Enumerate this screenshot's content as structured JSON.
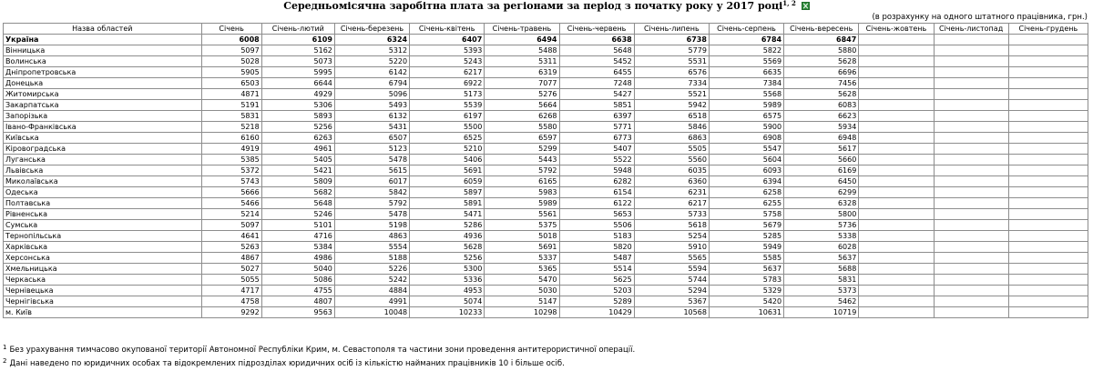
{
  "title": "Середньомісячна заробітна плата за регіонами за період з початку року у 2017 році",
  "title_sup": "1, 2",
  "units_note": "(в розрахунку на одного штатного працівника, грн.)",
  "table": {
    "headers": [
      "Назва областей",
      "Січень",
      "Січень-лютий",
      "Січень-березень",
      "Січень-квітень",
      "Січень-травень",
      "Січень-червень",
      "Січень-липень",
      "Січень-серпень",
      "Січень-вересень",
      "Січень-жовтень",
      "Січень-листопад",
      "Січень-грудень"
    ],
    "rows": [
      [
        "Україна",
        "6008",
        "6109",
        "6324",
        "6407",
        "6494",
        "6638",
        "6738",
        "6784",
        "6847",
        "",
        "",
        ""
      ],
      [
        "Вінницька",
        "5097",
        "5162",
        "5312",
        "5393",
        "5488",
        "5648",
        "5779",
        "5822",
        "5880",
        "",
        "",
        ""
      ],
      [
        "Волинська",
        "5028",
        "5073",
        "5220",
        "5243",
        "5311",
        "5452",
        "5531",
        "5569",
        "5628",
        "",
        "",
        ""
      ],
      [
        "Дніпропетровська",
        "5905",
        "5995",
        "6142",
        "6217",
        "6319",
        "6455",
        "6576",
        "6635",
        "6696",
        "",
        "",
        ""
      ],
      [
        "Донецька",
        "6503",
        "6644",
        "6794",
        "6922",
        "7077",
        "7248",
        "7334",
        "7384",
        "7456",
        "",
        "",
        ""
      ],
      [
        "Житомирська",
        "4871",
        "4929",
        "5096",
        "5173",
        "5276",
        "5427",
        "5521",
        "5568",
        "5628",
        "",
        "",
        ""
      ],
      [
        "Закарпатська",
        "5191",
        "5306",
        "5493",
        "5539",
        "5664",
        "5851",
        "5942",
        "5989",
        "6083",
        "",
        "",
        ""
      ],
      [
        "Запорізька",
        "5831",
        "5893",
        "6132",
        "6197",
        "6268",
        "6397",
        "6518",
        "6575",
        "6623",
        "",
        "",
        ""
      ],
      [
        "Івано-Франківська",
        "5218",
        "5256",
        "5431",
        "5500",
        "5580",
        "5771",
        "5846",
        "5900",
        "5934",
        "",
        "",
        ""
      ],
      [
        "Київська",
        "6160",
        "6263",
        "6507",
        "6525",
        "6597",
        "6773",
        "6863",
        "6908",
        "6948",
        "",
        "",
        ""
      ],
      [
        "Кіровоградська",
        "4919",
        "4961",
        "5123",
        "5210",
        "5299",
        "5407",
        "5505",
        "5547",
        "5617",
        "",
        "",
        ""
      ],
      [
        "Луганська",
        "5385",
        "5405",
        "5478",
        "5406",
        "5443",
        "5522",
        "5560",
        "5604",
        "5660",
        "",
        "",
        ""
      ],
      [
        "Львівська",
        "5372",
        "5421",
        "5615",
        "5691",
        "5792",
        "5948",
        "6035",
        "6093",
        "6169",
        "",
        "",
        ""
      ],
      [
        "Миколаївська",
        "5743",
        "5809",
        "6017",
        "6059",
        "6165",
        "6282",
        "6360",
        "6394",
        "6450",
        "",
        "",
        ""
      ],
      [
        "Одеська",
        "5666",
        "5682",
        "5842",
        "5897",
        "5983",
        "6154",
        "6231",
        "6258",
        "6299",
        "",
        "",
        ""
      ],
      [
        "Полтавська",
        "5466",
        "5648",
        "5792",
        "5891",
        "5989",
        "6122",
        "6217",
        "6255",
        "6328",
        "",
        "",
        ""
      ],
      [
        "Рівненська",
        "5214",
        "5246",
        "5478",
        "5471",
        "5561",
        "5653",
        "5733",
        "5758",
        "5800",
        "",
        "",
        ""
      ],
      [
        "Сумська",
        "5097",
        "5101",
        "5198",
        "5286",
        "5375",
        "5506",
        "5618",
        "5679",
        "5736",
        "",
        "",
        ""
      ],
      [
        "Тернопільська",
        "4641",
        "4716",
        "4863",
        "4936",
        "5018",
        "5183",
        "5254",
        "5285",
        "5338",
        "",
        "",
        ""
      ],
      [
        "Харківська",
        "5263",
        "5384",
        "5554",
        "5628",
        "5691",
        "5820",
        "5910",
        "5949",
        "6028",
        "",
        "",
        ""
      ],
      [
        "Херсонська",
        "4867",
        "4986",
        "5188",
        "5256",
        "5337",
        "5487",
        "5565",
        "5585",
        "5637",
        "",
        "",
        ""
      ],
      [
        "Хмельницька",
        "5027",
        "5040",
        "5226",
        "5300",
        "5365",
        "5514",
        "5594",
        "5637",
        "5688",
        "",
        "",
        ""
      ],
      [
        "Черкаська",
        "5055",
        "5086",
        "5242",
        "5336",
        "5470",
        "5625",
        "5744",
        "5783",
        "5831",
        "",
        "",
        ""
      ],
      [
        "Чернівецька",
        "4717",
        "4755",
        "4884",
        "4953",
        "5030",
        "5203",
        "5294",
        "5329",
        "5373",
        "",
        "",
        ""
      ],
      [
        "Чернігівська",
        "4758",
        "4807",
        "4991",
        "5074",
        "5147",
        "5289",
        "5367",
        "5420",
        "5462",
        "",
        "",
        ""
      ],
      [
        "м. Київ",
        "9292",
        "9563",
        "10048",
        "10233",
        "10298",
        "10429",
        "10568",
        "10631",
        "10719",
        "",
        "",
        ""
      ]
    ]
  },
  "footnotes": [
    {
      "mark": "1",
      "text": "Без урахування тимчасово окупованої території Автономної Республіки Крим, м. Севастополя та частини зони проведення антитерористичної операції."
    },
    {
      "mark": "2",
      "text": "Дані наведено по юридичних особах та відокремлених підрозділах юридичних осіб із кількістю найманих працівників 10 і більше осіб."
    }
  ]
}
